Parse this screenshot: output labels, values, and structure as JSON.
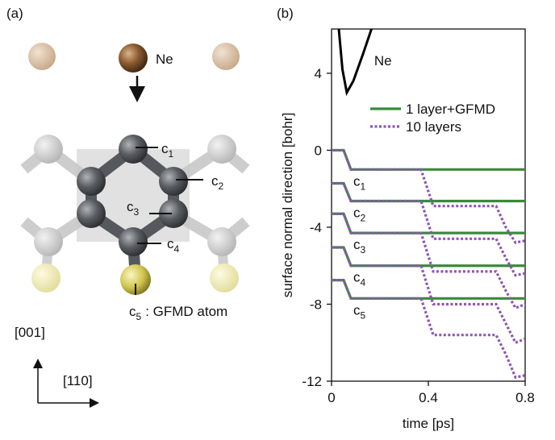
{
  "panels": [
    "(a)",
    "(b)"
  ],
  "diagram": {
    "incident": "Ne",
    "atoms": [
      {
        "letter": "c",
        "sub": "1"
      },
      {
        "letter": "c",
        "sub": "2"
      },
      {
        "letter": "c",
        "sub": "3"
      },
      {
        "letter": "c",
        "sub": "4"
      },
      {
        "letter": "c",
        "sub": "5",
        "note": ": GFMD atom"
      }
    ],
    "axes": [
      "[001]",
      "[110]"
    ]
  },
  "chart_data": {
    "type": "line",
    "x_label": "time [ps]",
    "y_label": "surface normal direction [bohr]",
    "xlim": [
      0,
      0.8
    ],
    "ylim": [
      -12,
      6.3
    ],
    "xticks": [
      0,
      0.4,
      0.8
    ],
    "yticks": [
      -12,
      -8,
      -4,
      0,
      4
    ],
    "x": [
      0,
      0.05,
      0.08,
      0.35,
      0.37,
      0.42,
      0.68,
      0.72,
      0.76,
      0.8
    ],
    "series": [
      {
        "name": "Ne",
        "color": "#000000",
        "x": [
          0.03,
          0.045,
          0.063,
          0.09,
          0.13,
          0.165
        ],
        "values": [
          6.3,
          4.2,
          3.0,
          3.6,
          5.0,
          6.3
        ]
      },
      {
        "name": "1 layer+GFMD",
        "color": "#3a8a3a",
        "style": "solid",
        "values": [
          [
            0,
            0,
            -1,
            -1,
            -1,
            -1,
            -1,
            -1,
            -1,
            -1
          ],
          [
            -1.72,
            -1.72,
            -2.64,
            -2.64,
            -2.64,
            -2.64,
            -2.64,
            -2.64,
            -2.64,
            -2.64
          ],
          [
            -3.3,
            -3.3,
            -4.3,
            -4.3,
            -4.3,
            -4.3,
            -4.3,
            -4.3,
            -4.3,
            -4.3
          ],
          [
            -5.05,
            -5.05,
            -6.0,
            -6.0,
            -6.0,
            -6.0,
            -6.0,
            -6.0,
            -6.0,
            -6.0
          ],
          [
            -6.75,
            -6.75,
            -7.7,
            -7.7,
            -7.7,
            -7.7,
            -7.7,
            -7.7,
            -7.7,
            -7.7
          ]
        ]
      },
      {
        "name": "10 layers",
        "color": "#8e55b6",
        "style": "dotted",
        "values": [
          [
            0,
            0,
            -1,
            -1,
            -1,
            -2.9,
            -2.9,
            -4.0,
            -4.8,
            -4.7
          ],
          [
            -1.72,
            -1.72,
            -2.64,
            -2.64,
            -2.64,
            -4.6,
            -4.6,
            -5.6,
            -6.5,
            -6.4
          ],
          [
            -3.3,
            -3.3,
            -4.3,
            -4.3,
            -4.3,
            -6.3,
            -6.3,
            -7.3,
            -8.2,
            -8.0
          ],
          [
            -5.05,
            -5.05,
            -6.0,
            -6.0,
            -6.0,
            -8.0,
            -8.0,
            -9.0,
            -10.0,
            -9.8
          ],
          [
            -6.75,
            -6.75,
            -7.7,
            -7.7,
            -7.7,
            -9.6,
            -9.6,
            -10.6,
            -11.8,
            -11.7
          ]
        ]
      }
    ],
    "annotations": [
      {
        "letter": "c",
        "sub": "1"
      },
      {
        "letter": "c",
        "sub": "2"
      },
      {
        "letter": "c",
        "sub": "3"
      },
      {
        "letter": "c",
        "sub": "4"
      },
      {
        "letter": "c",
        "sub": "5"
      }
    ]
  }
}
